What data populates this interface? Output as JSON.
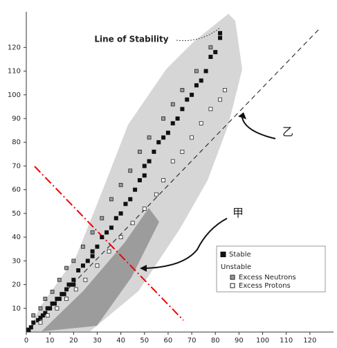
{
  "chart_data": {
    "type": "scatter",
    "xlim": [
      0,
      130
    ],
    "ylim": [
      0,
      135
    ],
    "xticks": [
      0,
      10,
      20,
      30,
      40,
      50,
      60,
      70,
      80,
      90,
      100,
      110,
      120
    ],
    "yticks": [
      10,
      20,
      30,
      40,
      50,
      60,
      70,
      80,
      90,
      100,
      110,
      120
    ],
    "legend": "lower right",
    "legend_heading": "Unstable",
    "annotations": [
      "Line of Stability",
      "乙",
      "甲"
    ],
    "series": [
      {
        "name": "Stable",
        "color": "#111111",
        "x": [
          1,
          2,
          3,
          5,
          6,
          7,
          8,
          9,
          10,
          11,
          12,
          13,
          14,
          15,
          16,
          17,
          18,
          19,
          20,
          20,
          22,
          24,
          26,
          28,
          28,
          30,
          32,
          34,
          36,
          38,
          40,
          42,
          44,
          46,
          48,
          50,
          50,
          52,
          54,
          56,
          58,
          60,
          62,
          64,
          66,
          68,
          70,
          72,
          74,
          76,
          78,
          80,
          82,
          82
        ],
        "y": [
          1,
          2,
          4,
          5,
          6,
          7,
          8,
          10,
          10,
          12,
          12,
          14,
          14,
          16,
          16,
          18,
          20,
          20,
          20,
          22,
          26,
          28,
          30,
          32,
          34,
          36,
          40,
          42,
          44,
          48,
          50,
          54,
          56,
          60,
          64,
          66,
          70,
          72,
          76,
          80,
          82,
          84,
          88,
          90,
          94,
          98,
          100,
          104,
          106,
          110,
          116,
          118,
          124,
          126
        ]
      },
      {
        "name": "Excess Neutrons",
        "color": "#9a9a9a",
        "x": [
          3,
          6,
          8,
          11,
          14,
          17,
          20,
          24,
          28,
          32,
          36,
          40,
          44,
          48,
          52,
          58,
          62,
          66,
          72,
          78
        ],
        "y": [
          7,
          10,
          14,
          17,
          22,
          27,
          30,
          36,
          42,
          48,
          56,
          62,
          68,
          76,
          82,
          90,
          96,
          102,
          110,
          120
        ]
      },
      {
        "name": "Excess Protons",
        "color": "#ffffff",
        "x": [
          6,
          9,
          13,
          17,
          21,
          25,
          30,
          35,
          40,
          45,
          50,
          55,
          58,
          62,
          66,
          70,
          74,
          78,
          82,
          84
        ],
        "y": [
          4,
          7,
          10,
          14,
          18,
          22,
          28,
          34,
          40,
          46,
          52,
          58,
          64,
          72,
          76,
          82,
          88,
          94,
          98,
          102
        ]
      }
    ]
  }
}
